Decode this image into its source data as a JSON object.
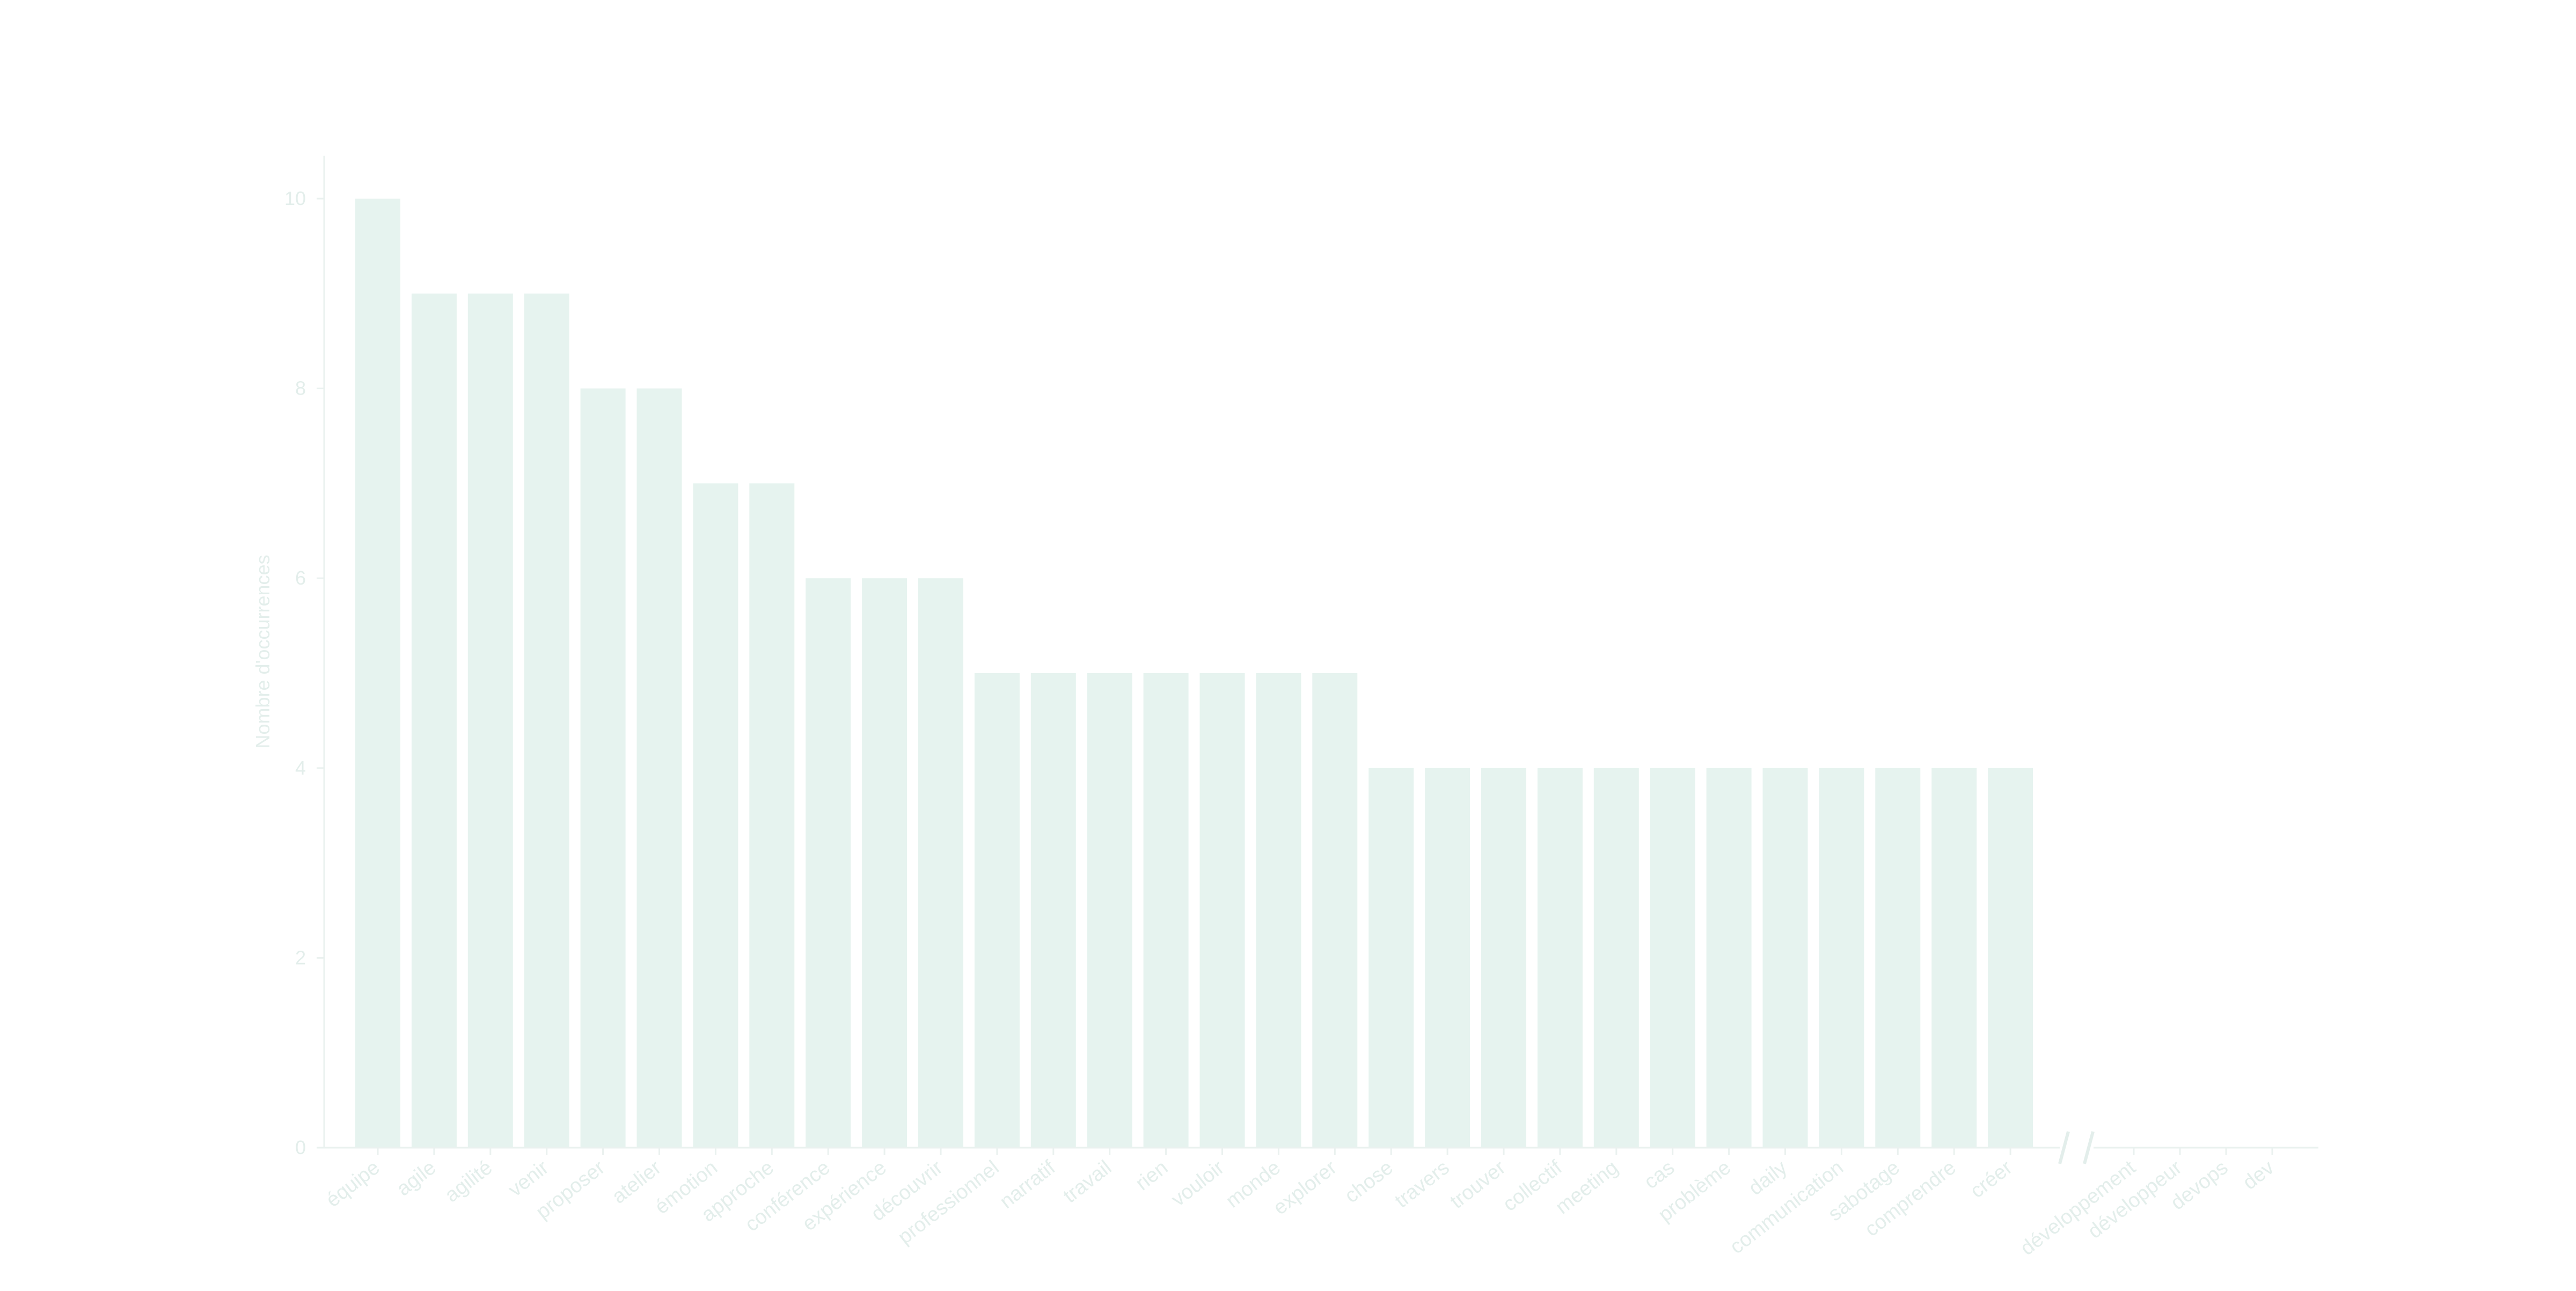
{
  "colors": {
    "bar": "#e6f3ef",
    "axis": "#eaf1ef",
    "text": "#e3eeeb",
    "background": "#ffffff"
  },
  "chart_data": {
    "type": "bar",
    "title": "",
    "xlabel": "",
    "ylabel": "Nombre d'occurrences",
    "ylim": [
      0,
      10.5
    ],
    "y_ticks": [
      0,
      2,
      4,
      6,
      8,
      10
    ],
    "grid": false,
    "axis_break_after_category": "créer",
    "categories": [
      "équipe",
      "agile",
      "agilité",
      "venir",
      "proposer",
      "atelier",
      "émotion",
      "approche",
      "conférence",
      "expérience",
      "découvrir",
      "professionnel",
      "narratif",
      "travail",
      "rien",
      "vouloir",
      "monde",
      "explorer",
      "chose",
      "travers",
      "trouver",
      "collectif",
      "meeting",
      "cas",
      "problème",
      "daily",
      "communication",
      "sabotage",
      "comprendre",
      "créer",
      "développement",
      "développeur",
      "devops",
      "dev"
    ],
    "values": [
      10,
      9,
      9,
      9,
      8,
      8,
      7,
      7,
      6,
      6,
      6,
      5,
      5,
      5,
      5,
      5,
      5,
      5,
      4,
      4,
      4,
      4,
      4,
      4,
      4,
      4,
      4,
      4,
      4,
      4,
      0,
      0,
      0,
      0
    ]
  }
}
